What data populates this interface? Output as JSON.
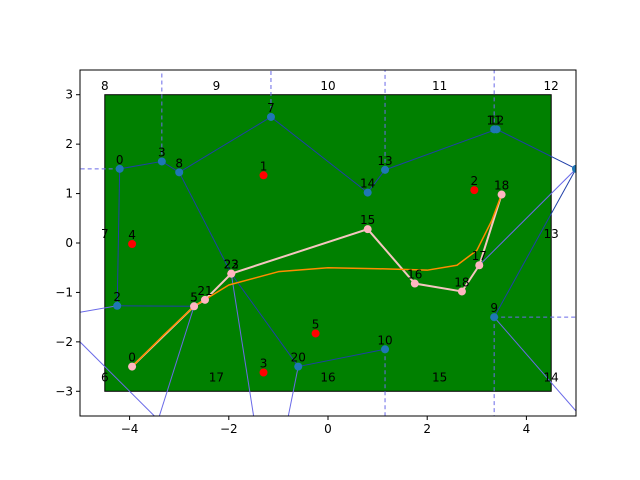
{
  "chart_data": {
    "type": "scatter",
    "xlim": [
      -5,
      5
    ],
    "ylim": [
      -3.5,
      3.5
    ],
    "x_ticks": [
      -4,
      -2,
      0,
      2,
      4
    ],
    "y_ticks": [
      -3,
      -2,
      -1,
      0,
      1,
      2,
      3
    ],
    "grid": false,
    "colors": {
      "field": "#008000",
      "field_border": "#000000",
      "graph_edges": "#1f3fa8",
      "graph_nodes": "#1f77b4",
      "guide_lines": "#6a6ae8",
      "red_points": "#ff0000",
      "path": "#f5c6c0",
      "path_nodes": "#ffb6c1",
      "smooth_path": "#ff8c00"
    },
    "field_rect": {
      "x": [
        -4.5,
        4.5
      ],
      "y": [
        -3,
        3
      ]
    },
    "boundary_labels": [
      {
        "label": "8",
        "x": -4.5,
        "y": 3.1
      },
      {
        "label": "9",
        "x": -2.25,
        "y": 3.1
      },
      {
        "label": "10",
        "x": 0,
        "y": 3.1
      },
      {
        "label": "11",
        "x": 2.25,
        "y": 3.1
      },
      {
        "label": "12",
        "x": 4.5,
        "y": 3.1
      },
      {
        "label": "7",
        "x": -4.5,
        "y": 0.1
      },
      {
        "label": "13",
        "x": 4.5,
        "y": 0.1
      },
      {
        "label": "6",
        "x": -4.5,
        "y": -2.8
      },
      {
        "label": "17",
        "x": -2.25,
        "y": -2.8
      },
      {
        "label": "16",
        "x": 0,
        "y": -2.8
      },
      {
        "label": "15",
        "x": 2.25,
        "y": -2.8
      },
      {
        "label": "14",
        "x": 4.5,
        "y": -2.8
      }
    ],
    "graph_nodes": [
      {
        "label": "0",
        "x": -4.2,
        "y": 1.5
      },
      {
        "label": "2",
        "x": -4.25,
        "y": -1.27
      },
      {
        "label": "3",
        "x": -3.35,
        "y": 1.65
      },
      {
        "label": "8",
        "x": -3.0,
        "y": 1.43
      },
      {
        "label": "7",
        "x": -1.15,
        "y": 2.55
      },
      {
        "label": "13",
        "x": 1.15,
        "y": 1.48
      },
      {
        "label": "14",
        "x": 0.8,
        "y": 1.02
      },
      {
        "label": "11",
        "x": 3.35,
        "y": 2.3
      },
      {
        "label": "12",
        "x": 3.4,
        "y": 2.3
      },
      {
        "label": "5",
        "x": -2.7,
        "y": -1.28
      },
      {
        "label": "20",
        "x": -0.6,
        "y": -2.5
      },
      {
        "label": "10",
        "x": 1.15,
        "y": -2.15
      },
      {
        "label": "9",
        "x": 3.35,
        "y": -1.5
      },
      {
        "label": "",
        "x": 5.0,
        "y": 1.5
      }
    ],
    "graph_edges": [
      [
        "0",
        "3"
      ],
      [
        "3",
        "8"
      ],
      [
        "8",
        "7"
      ],
      [
        "7",
        "14"
      ],
      [
        "14",
        "13"
      ],
      [
        "13",
        "12"
      ],
      [
        "12",
        "E"
      ],
      [
        "0",
        "2"
      ],
      [
        "2",
        "5"
      ],
      [
        "8",
        "23"
      ],
      [
        "23",
        "20"
      ],
      [
        "20",
        "10"
      ],
      [
        "10",
        "16"
      ],
      [
        "16",
        "18"
      ],
      [
        "18",
        "9"
      ],
      [
        "9",
        "E"
      ],
      [
        "11",
        "17"
      ],
      [
        "17",
        "E"
      ]
    ],
    "guide_lines": [
      {
        "from": [
          -3.35,
          1.65
        ],
        "to": [
          -3.35,
          3.5
        ]
      },
      {
        "from": [
          -1.15,
          2.55
        ],
        "to": [
          -1.15,
          3.5
        ]
      },
      {
        "from": [
          1.15,
          1.48
        ],
        "to": [
          1.15,
          3.5
        ]
      },
      {
        "from": [
          3.35,
          2.3
        ],
        "to": [
          3.35,
          3.5
        ]
      },
      {
        "from": [
          -4.2,
          1.5
        ],
        "to": [
          -5.0,
          1.5
        ]
      },
      {
        "from": [
          1.15,
          -2.15
        ],
        "to": [
          1.15,
          -3.5
        ]
      },
      {
        "from": [
          3.35,
          -1.5
        ],
        "to": [
          3.35,
          -3.5
        ]
      },
      {
        "from": [
          3.35,
          -1.5
        ],
        "to": [
          5.0,
          -1.5
        ]
      }
    ],
    "outer_lines": [
      {
        "from": [
          -4.25,
          -1.27
        ],
        "to": [
          -5.0,
          -1.4
        ]
      },
      {
        "from": [
          -5.0,
          -2.0
        ],
        "to": [
          -3.5,
          -3.5
        ]
      },
      {
        "from": [
          -2.7,
          -1.28
        ],
        "to": [
          -3.4,
          -3.5
        ]
      },
      {
        "from": [
          -1.95,
          -0.62
        ],
        "to": [
          -1.5,
          -3.5
        ]
      },
      {
        "from": [
          -0.6,
          -2.5
        ],
        "to": [
          -0.8,
          -3.5
        ]
      },
      {
        "from": [
          3.05,
          -0.45
        ],
        "to": [
          5.0,
          1.5
        ]
      },
      {
        "from": [
          3.35,
          -1.5
        ],
        "to": [
          5.0,
          -3.4
        ]
      }
    ],
    "red_points": [
      {
        "label": "1",
        "x": -1.3,
        "y": 1.37
      },
      {
        "label": "2",
        "x": 2.95,
        "y": 1.07
      },
      {
        "label": "4",
        "x": -3.95,
        "y": -0.02
      },
      {
        "label": "5",
        "x": -0.25,
        "y": -1.83
      },
      {
        "label": "3",
        "x": -1.3,
        "y": -2.62
      }
    ],
    "path_nodes": [
      {
        "label": "0",
        "x": -3.95,
        "y": -2.5
      },
      {
        "label": "5",
        "x": -2.7,
        "y": -1.28
      },
      {
        "label": "21",
        "x": -2.48,
        "y": -1.15
      },
      {
        "label": "22",
        "x": -1.95,
        "y": -0.62
      },
      {
        "label": "23",
        "x": -1.95,
        "y": -0.62
      },
      {
        "label": "15",
        "x": 0.8,
        "y": 0.28
      },
      {
        "label": "16",
        "x": 1.75,
        "y": -0.82
      },
      {
        "label": "18",
        "x": 2.7,
        "y": -0.98
      },
      {
        "label": "17",
        "x": 3.05,
        "y": -0.45
      },
      {
        "label": "18",
        "x": 3.5,
        "y": 0.98
      }
    ],
    "smooth_path": [
      [
        -3.95,
        -2.5
      ],
      [
        -3.3,
        -1.85
      ],
      [
        -2.7,
        -1.28
      ],
      [
        -2.0,
        -0.85
      ],
      [
        -1.0,
        -0.58
      ],
      [
        0.0,
        -0.5
      ],
      [
        1.0,
        -0.52
      ],
      [
        2.0,
        -0.55
      ],
      [
        2.6,
        -0.45
      ],
      [
        3.0,
        -0.15
      ],
      [
        3.3,
        0.45
      ],
      [
        3.5,
        0.98
      ]
    ]
  }
}
